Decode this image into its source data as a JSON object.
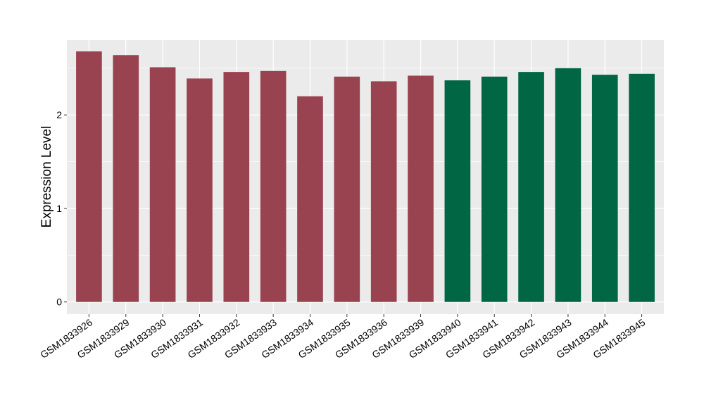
{
  "chart_data": {
    "type": "bar",
    "title": "",
    "xlabel": "",
    "ylabel": "Expression Level",
    "ylim": [
      -0.13,
      2.8
    ],
    "y_ticks": [
      0,
      1,
      2
    ],
    "grid": true,
    "legend": "none",
    "categories": [
      "GSM1833926",
      "GSM1833929",
      "GSM1833930",
      "GSM1833931",
      "GSM1833932",
      "GSM1833933",
      "GSM1833934",
      "GSM1833935",
      "GSM1833936",
      "GSM1833939",
      "GSM1833940",
      "GSM1833941",
      "GSM1833942",
      "GSM1833943",
      "GSM1833944",
      "GSM1833945"
    ],
    "values": [
      2.68,
      2.64,
      2.51,
      2.39,
      2.46,
      2.47,
      2.2,
      2.41,
      2.36,
      2.42,
      2.37,
      2.41,
      2.46,
      2.5,
      2.43,
      2.44
    ],
    "colors": [
      "#994350",
      "#994350",
      "#994350",
      "#994350",
      "#994350",
      "#994350",
      "#994350",
      "#994350",
      "#994350",
      "#994350",
      "#006644",
      "#006644",
      "#006644",
      "#006644",
      "#006644",
      "#006644"
    ],
    "panel_background": "#EBEBEB",
    "grid_color": "#FFFFFF"
  }
}
